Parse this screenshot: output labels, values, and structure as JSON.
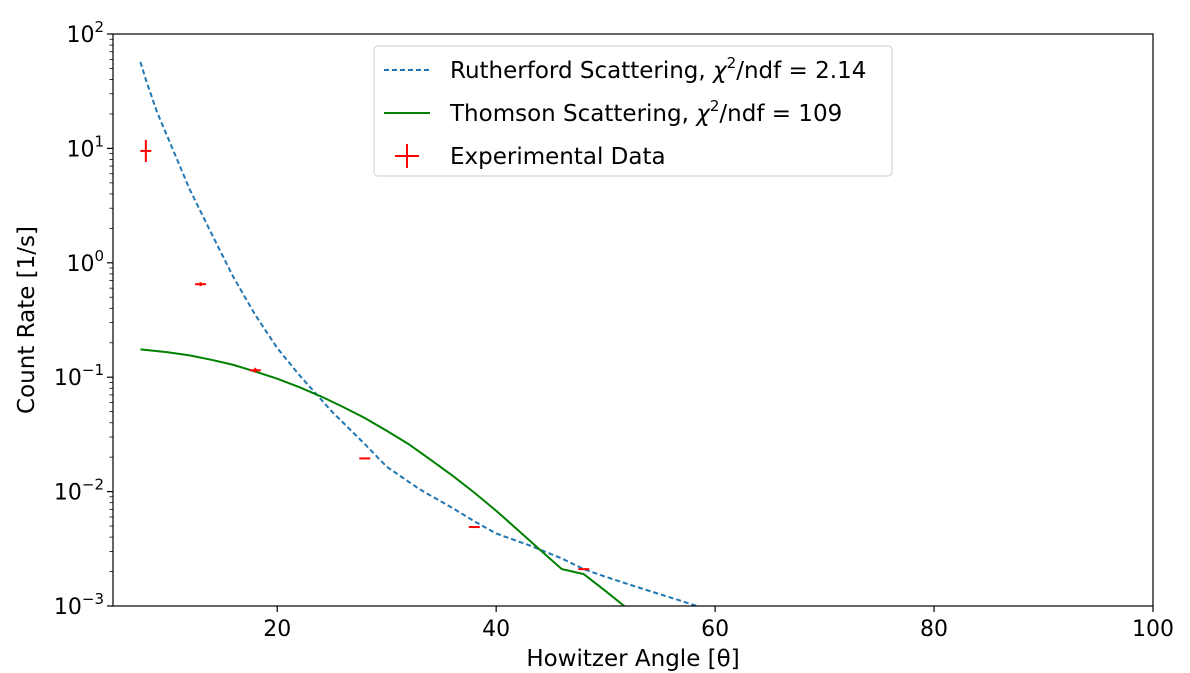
{
  "chart_data": {
    "type": "line",
    "title": "",
    "xlabel": "Howitzer Angle [θ]",
    "ylabel": "Count Rate [1/s]",
    "xlim": [
      5,
      100
    ],
    "ylim": [
      0.001,
      100
    ],
    "yscale": "log",
    "grid": false,
    "legend_position": "top-center",
    "x_ticks": [
      {
        "value": 20,
        "label": "20"
      },
      {
        "value": 40,
        "label": "40"
      },
      {
        "value": 60,
        "label": "60"
      },
      {
        "value": 80,
        "label": "80"
      },
      {
        "value": 100,
        "label": "100"
      }
    ],
    "y_ticks": [
      {
        "value": 0.001,
        "base": "10",
        "exp": "−3"
      },
      {
        "value": 0.01,
        "base": "10",
        "exp": "−2"
      },
      {
        "value": 0.1,
        "base": "10",
        "exp": "−1"
      },
      {
        "value": 1,
        "base": "10",
        "exp": "0"
      },
      {
        "value": 10,
        "base": "10",
        "exp": "1"
      },
      {
        "value": 100,
        "base": "10",
        "exp": "2"
      }
    ],
    "series": [
      {
        "name": "Rutherford Scattering, χ²/ndf = 2.14",
        "legend": {
          "pre": "Rutherford Scattering, ",
          "chi": "χ",
          "sup": "2",
          "post": "/ndf = 2.14"
        },
        "kind": "line",
        "style": "dashed",
        "color": "#1f77b4",
        "x": [
          7.5,
          8,
          9,
          10,
          12,
          14,
          16,
          18,
          20,
          22,
          25,
          28,
          30,
          33,
          36,
          38,
          40,
          43,
          46,
          48,
          50,
          53,
          56,
          58.5
        ],
        "y": [
          57,
          40,
          21,
          12.5,
          4.4,
          1.8,
          0.75,
          0.35,
          0.18,
          0.105,
          0.05,
          0.026,
          0.0165,
          0.0105,
          0.0072,
          0.0055,
          0.0043,
          0.0034,
          0.0026,
          0.0021,
          0.0018,
          0.00145,
          0.00118,
          0.00099
        ]
      },
      {
        "name": "Thomson Scattering, χ²/ndf = 109",
        "legend": {
          "pre": "Thomson Scattering, ",
          "chi": "χ",
          "sup": "2",
          "post": "/ndf = 109"
        },
        "kind": "line",
        "style": "solid",
        "color": "#008000",
        "x": [
          7.5,
          10,
          12,
          14,
          16,
          18,
          20,
          22,
          24,
          26,
          28,
          30,
          32,
          34,
          36,
          38,
          40,
          42,
          44,
          46,
          48,
          50,
          51.7
        ],
        "y": [
          0.175,
          0.165,
          0.155,
          0.142,
          0.128,
          0.112,
          0.097,
          0.082,
          0.068,
          0.055,
          0.044,
          0.034,
          0.026,
          0.019,
          0.0138,
          0.0098,
          0.0068,
          0.0046,
          0.0031,
          0.0021,
          0.0019,
          0.00135,
          0.001
        ]
      },
      {
        "name": "Experimental Data",
        "legend": {
          "pre": "Experimental Data",
          "chi": "",
          "sup": "",
          "post": ""
        },
        "kind": "errorbar",
        "color": "#ff0000",
        "x": [
          8,
          13,
          18,
          28,
          38,
          48
        ],
        "y": [
          9.5,
          0.65,
          0.115,
          0.0195,
          0.0049,
          0.0021
        ],
        "xerr": [
          0.5,
          0.5,
          0.5,
          0.5,
          0.5,
          0.5
        ],
        "yerr_factor": [
          1.25,
          1.04,
          1.05,
          1.0,
          1.0,
          1.0
        ]
      }
    ]
  }
}
